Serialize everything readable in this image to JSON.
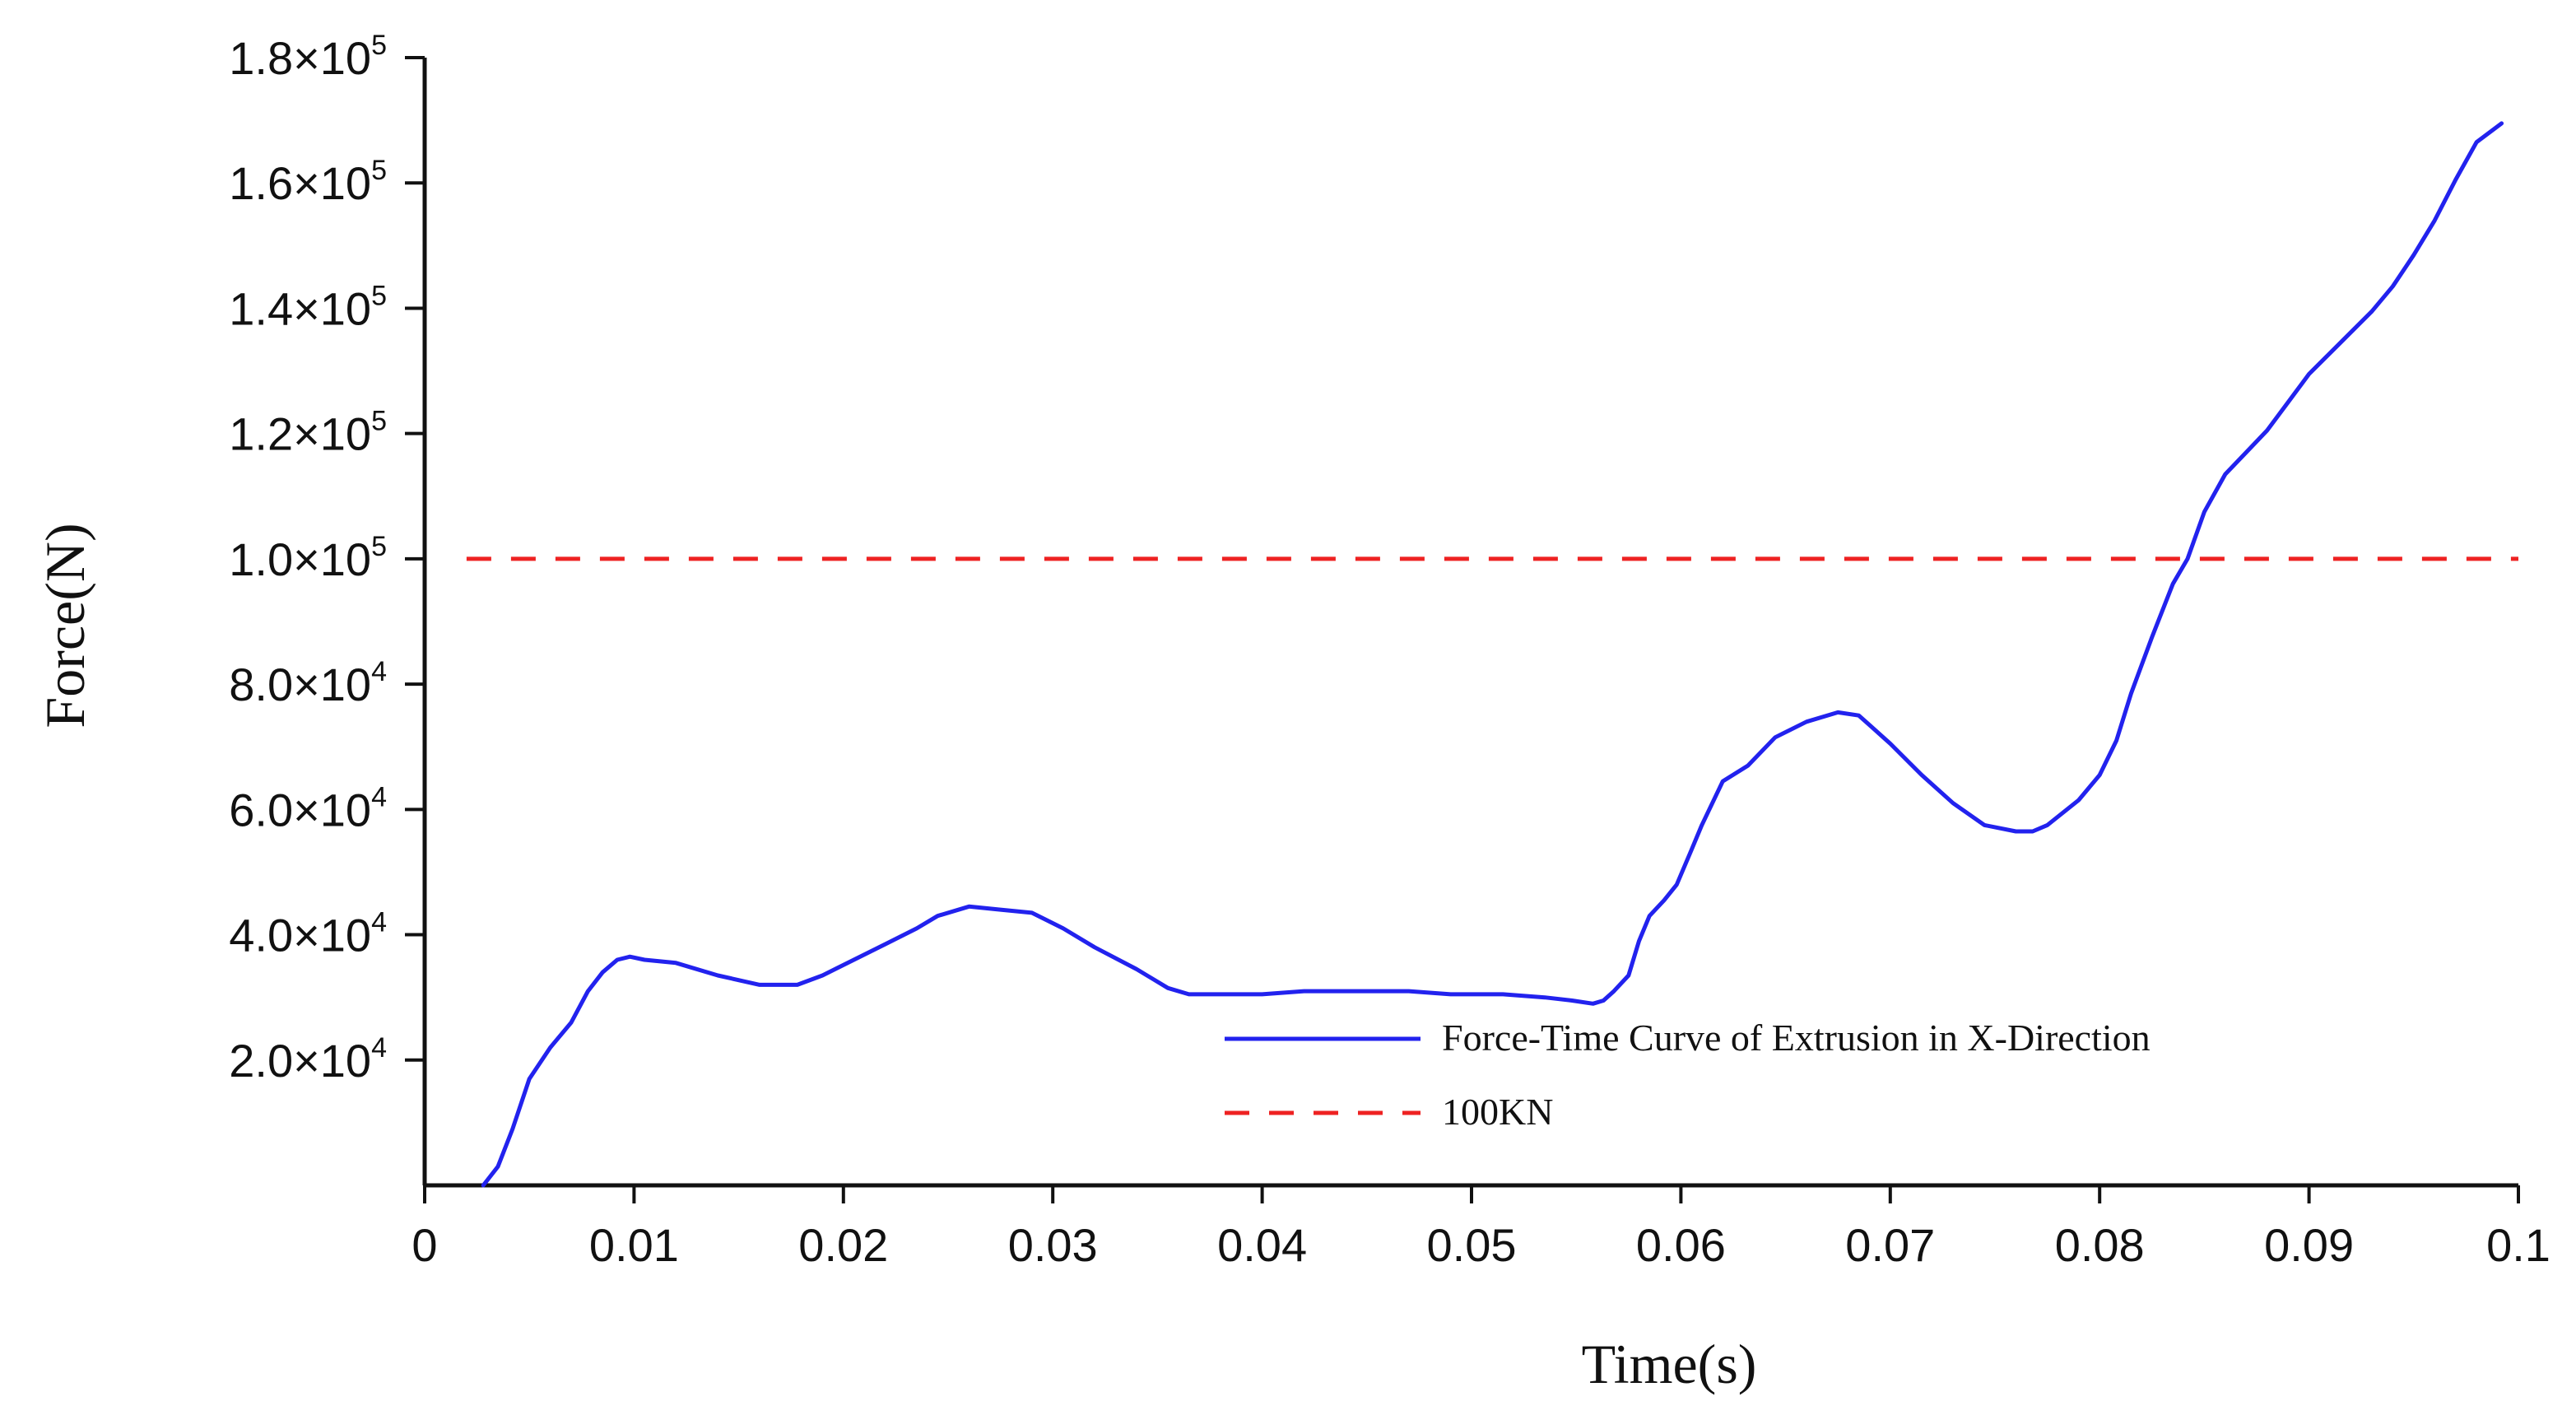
{
  "chart_data": {
    "type": "line",
    "xlabel": "Time(s)",
    "ylabel": "Force(N)",
    "xlim": [
      0,
      0.1
    ],
    "ylim": [
      0,
      180000
    ],
    "x_ticks": [
      {
        "value": 0,
        "label": "0"
      },
      {
        "value": 0.01,
        "label": "0.01"
      },
      {
        "value": 0.02,
        "label": "0.02"
      },
      {
        "value": 0.03,
        "label": "0.03"
      },
      {
        "value": 0.04,
        "label": "0.04"
      },
      {
        "value": 0.05,
        "label": "0.05"
      },
      {
        "value": 0.06,
        "label": "0.06"
      },
      {
        "value": 0.07,
        "label": "0.07"
      },
      {
        "value": 0.08,
        "label": "0.08"
      },
      {
        "value": 0.09,
        "label": "0.09"
      },
      {
        "value": 0.1,
        "label": "0.1"
      }
    ],
    "y_ticks": [
      {
        "value": 20000,
        "mantissa": "2.0",
        "exponent": "4"
      },
      {
        "value": 40000,
        "mantissa": "4.0",
        "exponent": "4"
      },
      {
        "value": 60000,
        "mantissa": "6.0",
        "exponent": "4"
      },
      {
        "value": 80000,
        "mantissa": "8.0",
        "exponent": "4"
      },
      {
        "value": 100000,
        "mantissa": "1.0",
        "exponent": "5"
      },
      {
        "value": 120000,
        "mantissa": "1.2",
        "exponent": "5"
      },
      {
        "value": 140000,
        "mantissa": "1.4",
        "exponent": "5"
      },
      {
        "value": 160000,
        "mantissa": "1.6",
        "exponent": "5"
      },
      {
        "value": 180000,
        "mantissa": "1.8",
        "exponent": "5"
      }
    ],
    "tick_multiplier": "×10",
    "grid": false,
    "legend_position": "lower-right",
    "series": [
      {
        "name": "Force-Time Curve of Extrusion in X-Direction",
        "color": "#2222ee",
        "style": "solid",
        "x": [
          0.0028,
          0.0035,
          0.0042,
          0.005,
          0.006,
          0.007,
          0.0078,
          0.0085,
          0.0092,
          0.0098,
          0.0105,
          0.012,
          0.014,
          0.016,
          0.0178,
          0.019,
          0.0205,
          0.022,
          0.0235,
          0.0245,
          0.026,
          0.0275,
          0.029,
          0.0305,
          0.032,
          0.034,
          0.0355,
          0.0365,
          0.038,
          0.04,
          0.042,
          0.0445,
          0.047,
          0.049,
          0.0515,
          0.0535,
          0.0548,
          0.0558,
          0.0563,
          0.0568,
          0.0575,
          0.058,
          0.0585,
          0.0592,
          0.0598,
          0.0605,
          0.061,
          0.062,
          0.0632,
          0.0645,
          0.066,
          0.0675,
          0.0685,
          0.069,
          0.07,
          0.0715,
          0.073,
          0.0745,
          0.076,
          0.0768,
          0.0775,
          0.079,
          0.08,
          0.0808,
          0.0815,
          0.0825,
          0.0835,
          0.0842,
          0.085,
          0.086,
          0.087,
          0.088,
          0.089,
          0.09,
          0.0915,
          0.093,
          0.094,
          0.095,
          0.096,
          0.097,
          0.098,
          0.0992
        ],
        "values": [
          0,
          3000,
          9000,
          17000,
          22000,
          26000,
          31000,
          34000,
          36000,
          36500,
          36000,
          35500,
          33500,
          32000,
          32000,
          33500,
          36000,
          38500,
          41000,
          43000,
          44500,
          44000,
          43500,
          41000,
          38000,
          34500,
          31500,
          30500,
          30500,
          30500,
          31000,
          31000,
          31000,
          30500,
          30500,
          30000,
          29500,
          29000,
          29500,
          31000,
          33500,
          39000,
          43000,
          45500,
          48000,
          53500,
          57500,
          64500,
          67000,
          71500,
          74000,
          75500,
          75000,
          73500,
          70500,
          65500,
          61000,
          57500,
          56500,
          56500,
          57500,
          61500,
          65500,
          71000,
          78500,
          87500,
          96000,
          100000,
          107500,
          113500,
          117000,
          120500,
          125000,
          129500,
          134500,
          139500,
          143500,
          148500,
          154000,
          160500,
          166500,
          169500
        ]
      },
      {
        "name": "100KN",
        "color": "#ee2222",
        "style": "dashed",
        "x": [
          0.002,
          0.1
        ],
        "values": [
          100000,
          100000
        ]
      }
    ]
  }
}
